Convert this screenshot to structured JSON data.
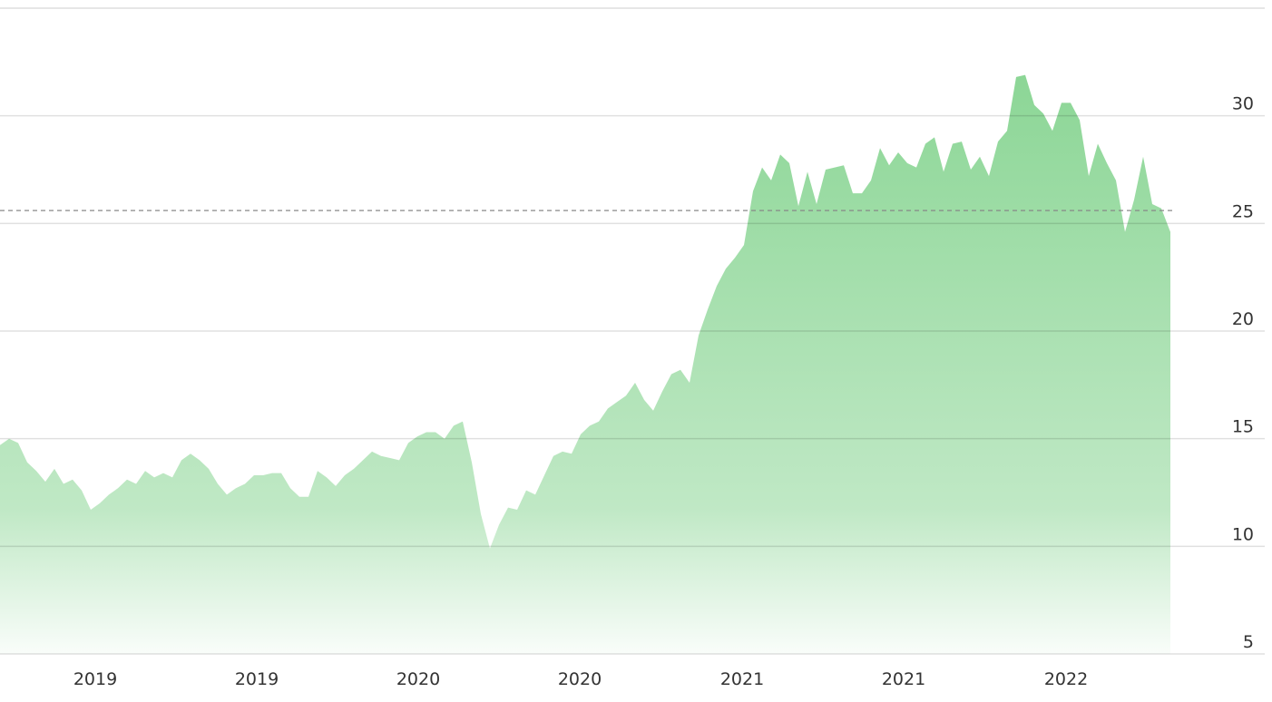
{
  "chart_data": {
    "type": "area",
    "color": "#8cd696",
    "values": [
      14.7,
      15.0,
      14.8,
      13.9,
      13.5,
      13.0,
      13.6,
      12.9,
      13.1,
      12.6,
      11.7,
      12.0,
      12.4,
      12.7,
      13.1,
      12.9,
      13.5,
      13.2,
      13.4,
      13.2,
      14.0,
      14.3,
      14.0,
      13.6,
      12.9,
      12.4,
      12.7,
      12.9,
      13.3,
      13.3,
      13.4,
      13.4,
      12.7,
      12.3,
      12.3,
      13.5,
      13.2,
      12.8,
      13.3,
      13.6,
      14.0,
      14.4,
      14.2,
      14.1,
      14.0,
      14.8,
      15.1,
      15.3,
      15.3,
      15.0,
      15.6,
      15.8,
      13.9,
      11.5,
      9.9,
      11.0,
      11.8,
      11.7,
      12.6,
      12.4,
      13.3,
      14.2,
      14.4,
      14.3,
      15.2,
      15.6,
      15.8,
      16.4,
      16.7,
      17.0,
      17.6,
      16.8,
      16.3,
      17.2,
      18.0,
      18.2,
      17.6,
      19.8,
      21.0,
      22.1,
      22.9,
      23.4,
      24.0,
      26.5,
      27.6,
      27.0,
      28.2,
      27.8,
      25.8,
      27.4,
      25.9,
      27.5,
      27.6,
      27.7,
      26.4,
      26.4,
      27.0,
      28.5,
      27.7,
      28.3,
      27.8,
      27.6,
      28.7,
      29.0,
      27.4,
      28.7,
      28.8,
      27.5,
      28.1,
      27.2,
      28.8,
      29.3,
      31.8,
      31.9,
      30.5,
      30.1,
      29.3,
      30.6,
      30.6,
      29.8,
      27.2,
      28.7,
      27.8,
      27.0,
      24.6,
      26.1,
      28.1,
      25.9,
      25.7,
      24.6
    ],
    "reference_line": 25.6,
    "xlim": [
      0,
      129
    ],
    "xticks": [
      {
        "value": 10.5,
        "label": "2019"
      },
      {
        "value": 28.3,
        "label": "2019"
      },
      {
        "value": 46.1,
        "label": "2020"
      },
      {
        "value": 63.9,
        "label": "2020"
      },
      {
        "value": 81.8,
        "label": "2021"
      },
      {
        "value": 99.6,
        "label": "2021"
      },
      {
        "value": 117.5,
        "label": "2022"
      }
    ],
    "ylim": [
      5,
      35
    ],
    "yticks": [
      5,
      10,
      15,
      20,
      25,
      30
    ],
    "grid": true
  }
}
